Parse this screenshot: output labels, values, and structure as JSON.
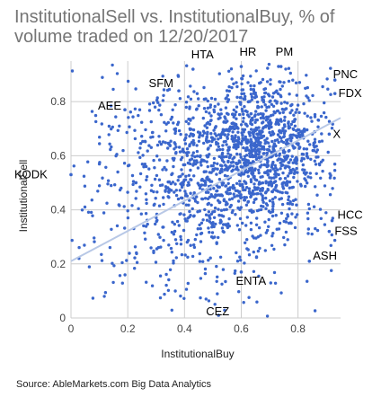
{
  "title": "InstitutionalSell vs. InstitutionalBuy, % of volume traded on 12/20/2017",
  "source": "Source: AbleMarkets.com Big Data Analytics",
  "chart_data": {
    "type": "scatter",
    "title": "InstitutionalSell vs. InstitutionalBuy, % of volume traded on 12/20/2017",
    "xlabel": "InstitutionalBuy",
    "ylabel": "InstitutionalSell",
    "xlim": [
      0,
      0.95
    ],
    "ylim": [
      0,
      0.95
    ],
    "x_ticks": [
      "0",
      "0.2",
      "0.4",
      "0.6",
      "0.8"
    ],
    "y_ticks": [
      "0",
      "0.2",
      "0.4",
      "0.6",
      "0.8"
    ],
    "grid": true,
    "point_color": "#3a66cc",
    "trendline": {
      "color": "#b8c8e6",
      "x": [
        0,
        0.95
      ],
      "y": [
        0.21,
        0.74
      ]
    },
    "labeled_points": [
      {
        "label": "HTA",
        "x": 0.43,
        "y": 0.92
      },
      {
        "label": "HR",
        "x": 0.6,
        "y": 0.93
      },
      {
        "label": "PM",
        "x": 0.74,
        "y": 0.93
      },
      {
        "label": "PNC",
        "x": 0.93,
        "y": 0.88
      },
      {
        "label": "SFM",
        "x": 0.38,
        "y": 0.84
      },
      {
        "label": "FDX",
        "x": 0.93,
        "y": 0.83
      },
      {
        "label": "AEE",
        "x": 0.19,
        "y": 0.77
      },
      {
        "label": "X",
        "x": 0.91,
        "y": 0.68
      },
      {
        "label": "KODK",
        "x": 0,
        "y": 0.53
      },
      {
        "label": "HCC",
        "x": 0.92,
        "y": 0.36
      },
      {
        "label": "FSS",
        "x": 0.91,
        "y": 0.32
      },
      {
        "label": "ASH",
        "x": 0.84,
        "y": 0.21
      },
      {
        "label": "ENTA",
        "x": 0.6,
        "y": 0.17
      },
      {
        "label": "CEZ",
        "x": 0.52,
        "y": 0.01
      }
    ],
    "point_cloud": {
      "count": 1800,
      "clusters": [
        {
          "cx": 0.66,
          "cy": 0.62,
          "sx": 0.12,
          "sy": 0.13,
          "weight": 0.55
        },
        {
          "cx": 0.45,
          "cy": 0.5,
          "sx": 0.18,
          "sy": 0.18,
          "weight": 0.3
        },
        {
          "cx": 0.45,
          "cy": 0.45,
          "sx": 0.28,
          "sy": 0.26,
          "weight": 0.15
        }
      ]
    }
  }
}
